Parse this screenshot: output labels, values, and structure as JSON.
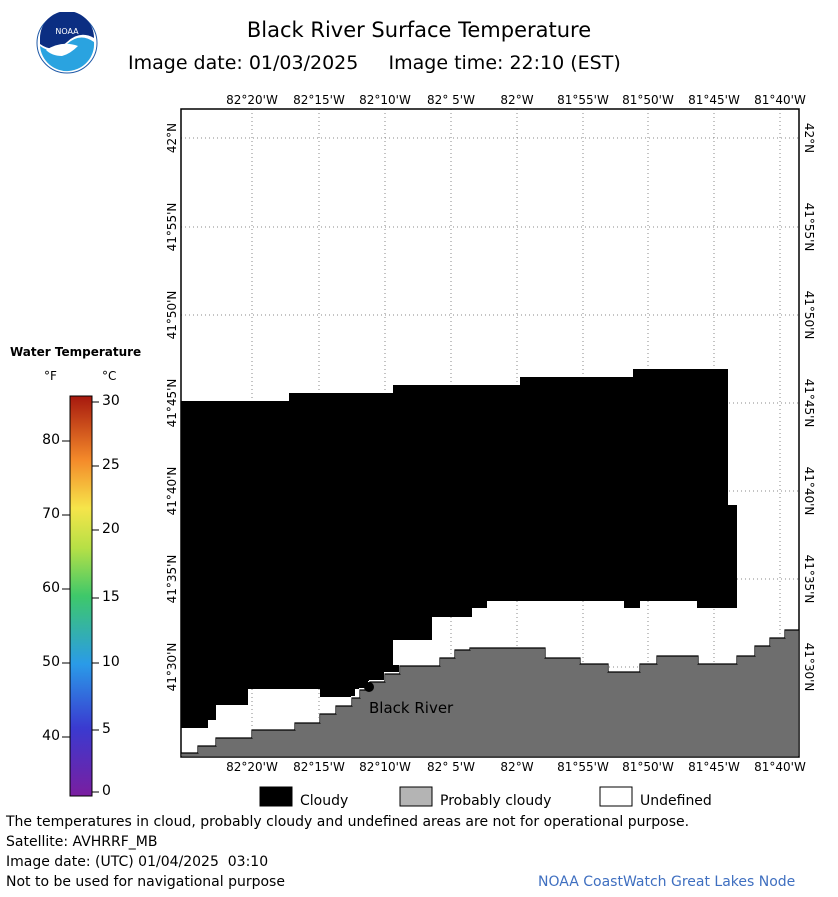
{
  "header": {
    "title": "Black River Surface Temperature",
    "subtitle": "Image date: 01/03/2025     Image time: 22:10 (EST)",
    "logo_text": "NOAA"
  },
  "map": {
    "lon_labels": [
      "82°20'W",
      "82°15'W",
      "82°10'W",
      "82° 5'W",
      "82°W",
      "81°55'W",
      "81°50'W",
      "81°45'W",
      "81°40'W"
    ],
    "lat_labels": [
      "42°N",
      "41°55'N",
      "41°50'N",
      "41°45'N",
      "41°40'N",
      "41°35'N",
      "41°30'N"
    ],
    "place_label": "Black River",
    "colors": {
      "cloudy": "#000000",
      "probably_cloudy": "#6e6e6e",
      "undefined": "#ffffff",
      "grid": "#888888"
    }
  },
  "legend": {
    "title": "Water Temperature",
    "unit_f": "°F",
    "unit_c": "°C",
    "f_ticks": [
      "80",
      "70",
      "60",
      "50",
      "40"
    ],
    "c_ticks": [
      "30",
      "25",
      "20",
      "15",
      "10",
      "5",
      "0"
    ],
    "range_f": [
      32,
      86
    ],
    "range_c": [
      0,
      30
    ]
  },
  "key": {
    "cloudy": "Cloudy",
    "probably_cloudy": "Probably cloudy",
    "undefined": "Undefined"
  },
  "footer": {
    "disclaimer": "The temperatures in cloud, probably cloudy and undefined areas are not for operational purpose.",
    "satellite": "Satellite: AVHRRF_MB",
    "utc_date": "Image date: (UTC) 01/04/2025  03:10",
    "nav_warning": "Not to be used for navigational purpose",
    "credit": "NOAA CoastWatch Great Lakes Node"
  }
}
